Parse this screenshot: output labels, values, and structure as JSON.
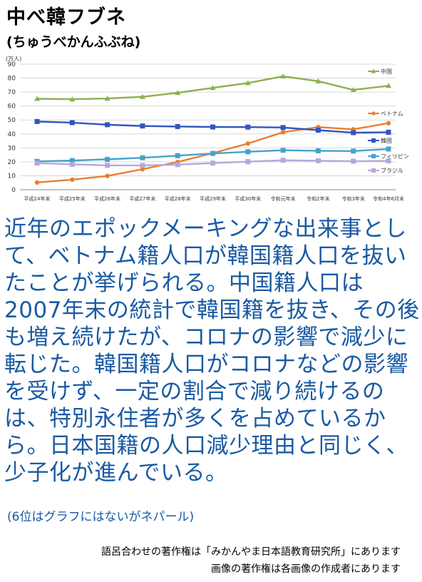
{
  "title": "中べ韓フブネ",
  "reading": "(ちゅうべかんふぶね)",
  "body_text": "近年のエポックメーキングな出来事として、ベトナム籍人口が韓国籍人口を抜いたことが挙げられる。中国籍人口は2007年末の統計で韓国籍を抜き、その後も増え続けたが、コロナの影響で減少に転じた。韓国籍人口がコロナなどの影響を受けず、一定の割合で減り続けるのは、特別永住者が多くを占めているから。日本国籍の人口減少理由と同じく、少子化が進んでいる。",
  "note": "(6位はグラフにはないがネパール)",
  "credits": {
    "line1": "語呂合わせの著作権は「みかんやま日本語教育研究所」にあります",
    "line2": "画像の著作権は各画像の作成者にあります"
  },
  "chart_data": {
    "type": "line",
    "unit_label": "(万人)",
    "ylim": [
      0,
      90
    ],
    "yticks": [
      0,
      10,
      20,
      30,
      40,
      50,
      60,
      70,
      80,
      90
    ],
    "grid": true,
    "legend_position": "right",
    "categories": [
      "平成24年末",
      "平成25年末",
      "平成26年末",
      "平成27年末",
      "平成28年末",
      "平成29年末",
      "平成30年末",
      "令和元年末",
      "令和2年末",
      "令和3年末",
      "令和4年6月末"
    ],
    "series": [
      {
        "name": "中国",
        "color": "#8db04e",
        "marker": "triangle",
        "values": [
          65.2,
          64.9,
          65.4,
          66.6,
          69.5,
          73.0,
          76.5,
          81.3,
          77.8,
          71.6,
          74.5
        ]
      },
      {
        "name": "ベトナム",
        "color": "#ed7d31",
        "marker": "circle",
        "values": [
          5.2,
          7.2,
          9.9,
          14.7,
          19.9,
          26.2,
          33.1,
          41.2,
          44.9,
          43.3,
          47.7
        ]
      },
      {
        "name": "韓国",
        "color": "#3355c0",
        "marker": "square",
        "values": [
          48.9,
          48.1,
          46.6,
          45.7,
          45.3,
          45.0,
          44.9,
          44.6,
          42.7,
          40.9,
          41.2
        ]
      },
      {
        "name": "フィリピン",
        "color": "#45a3cc",
        "marker": "square",
        "values": [
          20.3,
          20.9,
          21.8,
          22.9,
          24.4,
          26.0,
          27.2,
          28.3,
          27.9,
          27.7,
          29.2
        ]
      },
      {
        "name": "ブラジル",
        "color": "#b9a7d9",
        "marker": "square",
        "values": [
          19.1,
          18.2,
          17.5,
          17.4,
          18.0,
          19.1,
          20.1,
          21.1,
          20.8,
          20.4,
          20.7
        ]
      }
    ]
  }
}
